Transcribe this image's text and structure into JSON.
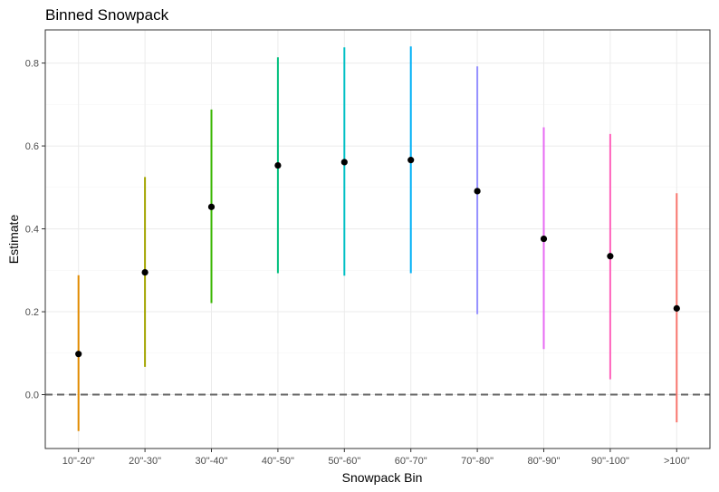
{
  "chart_data": {
    "type": "errorbar",
    "title": "Binned Snowpack",
    "xlabel": "Snowpack Bin",
    "ylabel": "Estimate",
    "ylim": [
      -0.13,
      0.88
    ],
    "yticks": [
      0.0,
      0.2,
      0.4,
      0.6,
      0.8
    ],
    "ytick_labels": [
      "0.0",
      "0.2",
      "0.4",
      "0.6",
      "0.8"
    ],
    "grid": true,
    "reference_line": {
      "y": 0,
      "style": "dashed",
      "color": "#666666"
    },
    "categories": [
      "10\"-20\"",
      "20\"-30\"",
      "30\"-40\"",
      "40\"-50\"",
      "50\"-60\"",
      "60\"-70\"",
      "70\"-80\"",
      "80\"-90\"",
      "90\"-100\"",
      ">100\""
    ],
    "points": [
      {
        "category": "10\"-20\"",
        "estimate": 0.098,
        "lower": -0.088,
        "upper": 0.288,
        "color": "#E18A00"
      },
      {
        "category": "20\"-30\"",
        "estimate": 0.295,
        "lower": 0.067,
        "upper": 0.525,
        "color": "#A3A500"
      },
      {
        "category": "30\"-40\"",
        "estimate": 0.453,
        "lower": 0.221,
        "upper": 0.688,
        "color": "#39B600"
      },
      {
        "category": "40\"-50\"",
        "estimate": 0.553,
        "lower": 0.293,
        "upper": 0.814,
        "color": "#00BF7D"
      },
      {
        "category": "50\"-60\"",
        "estimate": 0.561,
        "lower": 0.287,
        "upper": 0.838,
        "color": "#00BFC4"
      },
      {
        "category": "60\"-70\"",
        "estimate": 0.566,
        "lower": 0.293,
        "upper": 0.84,
        "color": "#00B0F6"
      },
      {
        "category": "70\"-80\"",
        "estimate": 0.491,
        "lower": 0.194,
        "upper": 0.792,
        "color": "#9590FF"
      },
      {
        "category": "80\"-90\"",
        "estimate": 0.376,
        "lower": 0.11,
        "upper": 0.645,
        "color": "#E76BF3"
      },
      {
        "category": "90\"-100\"",
        "estimate": 0.334,
        "lower": 0.037,
        "upper": 0.629,
        "color": "#FF62BC"
      },
      {
        "category": ">100\"",
        "estimate": 0.208,
        "lower": -0.067,
        "upper": 0.486,
        "color": "#F8766D"
      }
    ],
    "point_color": "#000000"
  }
}
